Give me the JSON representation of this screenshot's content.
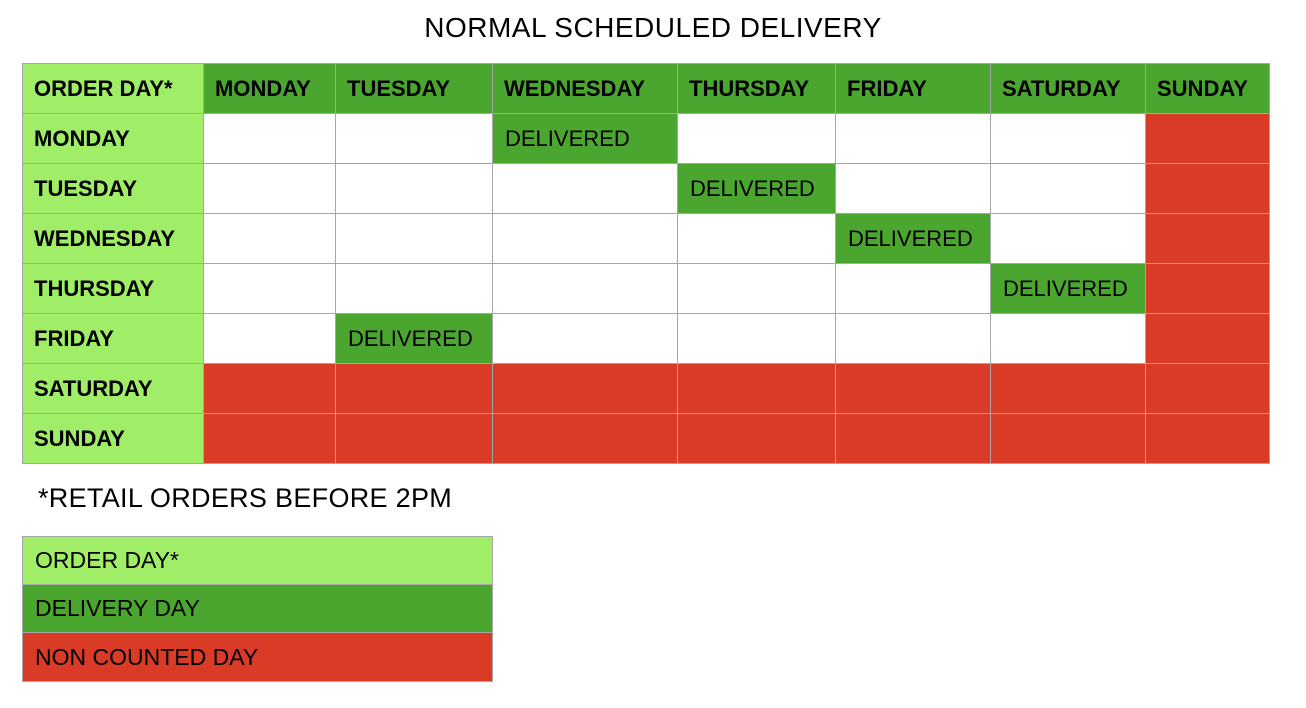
{
  "colors": {
    "order_day": "#a0ed68",
    "delivery_day": "#4ba62f",
    "non_counted_day": "#d93b26",
    "border": "#a6a6a6",
    "text": "#000000"
  },
  "chart_data": {
    "type": "table",
    "title": "NORMAL SCHEDULED DELIVERY",
    "footnote": "*RETAIL ORDERS BEFORE 2PM",
    "delivered_text": "DELIVERED",
    "columns": [
      "ORDER DAY*",
      "MONDAY",
      "TUESDAY",
      "WEDNESDAY",
      "THURSDAY",
      "FRIDAY",
      "SATURDAY",
      "SUNDAY"
    ],
    "rows": [
      {
        "label": "MONDAY",
        "cells": [
          "empty",
          "empty",
          "delivered",
          "empty",
          "empty",
          "empty",
          "non_counted"
        ]
      },
      {
        "label": "TUESDAY",
        "cells": [
          "empty",
          "empty",
          "empty",
          "delivered",
          "empty",
          "empty",
          "non_counted"
        ]
      },
      {
        "label": "WEDNESDAY",
        "cells": [
          "empty",
          "empty",
          "empty",
          "empty",
          "delivered",
          "empty",
          "non_counted"
        ]
      },
      {
        "label": "THURSDAY",
        "cells": [
          "empty",
          "empty",
          "empty",
          "empty",
          "empty",
          "delivered",
          "non_counted"
        ]
      },
      {
        "label": "FRIDAY",
        "cells": [
          "empty",
          "delivered",
          "empty",
          "empty",
          "empty",
          "empty",
          "non_counted"
        ]
      },
      {
        "label": "SATURDAY",
        "cells": [
          "non_counted",
          "non_counted",
          "non_counted",
          "non_counted",
          "non_counted",
          "non_counted",
          "non_counted"
        ]
      },
      {
        "label": "SUNDAY",
        "cells": [
          "non_counted",
          "non_counted",
          "non_counted",
          "non_counted",
          "non_counted",
          "non_counted",
          "non_counted"
        ]
      }
    ],
    "legend": [
      {
        "key": "order-day",
        "label": "ORDER DAY*",
        "color": "#a0ed68"
      },
      {
        "key": "delivery-day",
        "label": "DELIVERY DAY",
        "color": "#4ba62f"
      },
      {
        "key": "non-counted-day",
        "label": "NON COUNTED DAY",
        "color": "#d93b26"
      }
    ]
  }
}
